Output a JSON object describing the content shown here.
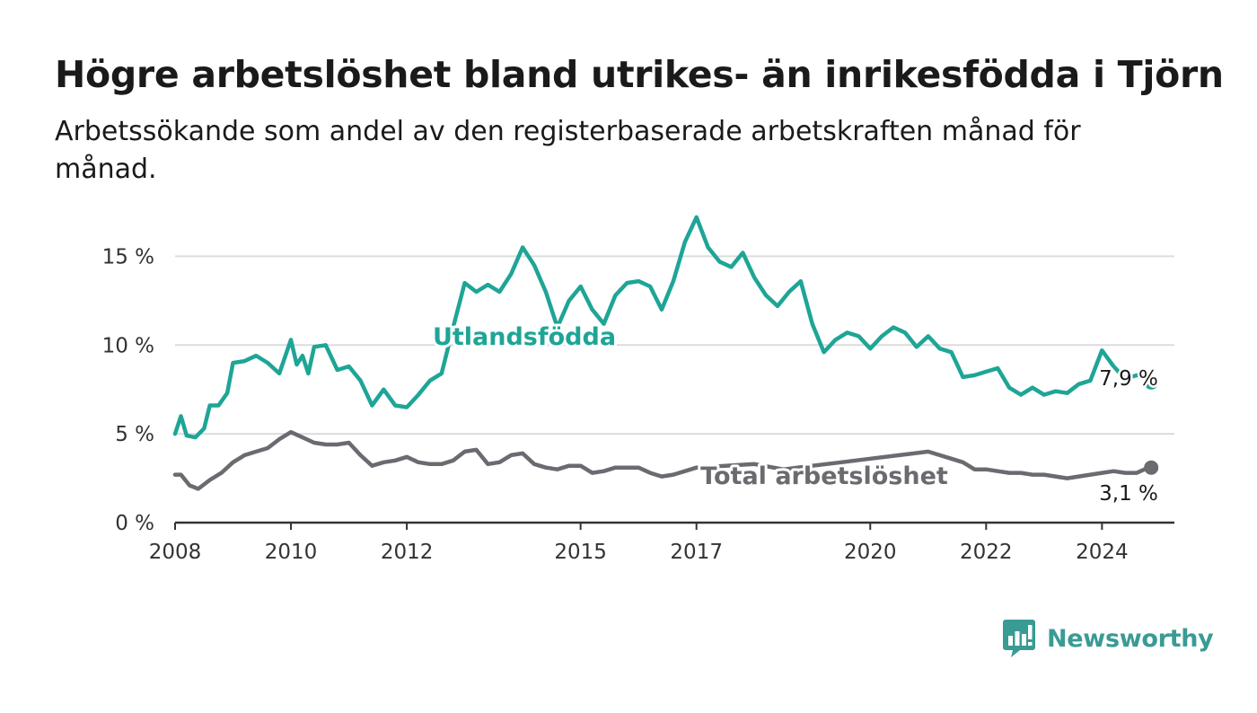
{
  "title": "Högre arbetslöshet bland utrikes- än inrikesfödda i Tjörn",
  "subtitle": "Arbetssökande som andel av den registerbaserade arbetskraften månad för månad.",
  "brand": {
    "name": "Newsworthy",
    "icon": "chart-bubble-icon",
    "color": "#3a9b94"
  },
  "colors": {
    "foreign_born": "#1ea596",
    "total": "#6b6a70",
    "grid": "#dcdcdc",
    "axis": "#333333"
  },
  "chart_data": {
    "type": "line",
    "ylim": [
      0,
      17.5
    ],
    "xlim": [
      2008,
      2025.25
    ],
    "y_ticks": [
      0,
      5,
      10,
      15
    ],
    "y_tick_labels": [
      "0 %",
      "5 %",
      "10 %",
      "15 %"
    ],
    "x_ticks": [
      2008,
      2010,
      2012,
      2015,
      2017,
      2020,
      2022,
      2024
    ],
    "x_tick_labels": [
      "2008",
      "2010",
      "2012",
      "2015",
      "2017",
      "2020",
      "2022",
      "2024"
    ],
    "grid": true,
    "series": [
      {
        "name": "Utlandsfödda",
        "end_label": "7,9 %",
        "x": [
          2008.0,
          2008.1,
          2008.2,
          2008.35,
          2008.5,
          2008.6,
          2008.75,
          2008.9,
          2009.0,
          2009.2,
          2009.4,
          2009.6,
          2009.8,
          2010.0,
          2010.1,
          2010.2,
          2010.3,
          2010.4,
          2010.6,
          2010.8,
          2011.0,
          2011.2,
          2011.4,
          2011.6,
          2011.8,
          2012.0,
          2012.2,
          2012.4,
          2012.6,
          2012.8,
          2013.0,
          2013.2,
          2013.4,
          2013.6,
          2013.8,
          2014.0,
          2014.2,
          2014.4,
          2014.6,
          2014.8,
          2015.0,
          2015.2,
          2015.4,
          2015.6,
          2015.8,
          2016.0,
          2016.2,
          2016.4,
          2016.6,
          2016.8,
          2017.0,
          2017.2,
          2017.4,
          2017.6,
          2017.8,
          2018.0,
          2018.2,
          2018.4,
          2018.6,
          2018.8,
          2019.0,
          2019.2,
          2019.4,
          2019.6,
          2019.8,
          2020.0,
          2020.2,
          2020.4,
          2020.6,
          2020.8,
          2021.0,
          2021.2,
          2021.4,
          2021.6,
          2021.8,
          2022.0,
          2022.2,
          2022.4,
          2022.6,
          2022.8,
          2023.0,
          2023.2,
          2023.4,
          2023.6,
          2023.8,
          2024.0,
          2024.2,
          2024.4,
          2024.6,
          2024.8,
          2024.85
        ],
        "values": [
          5.0,
          6.0,
          4.9,
          4.8,
          5.3,
          6.6,
          6.6,
          7.3,
          9.0,
          9.1,
          9.4,
          9.0,
          8.4,
          10.3,
          8.9,
          9.4,
          8.4,
          9.9,
          10.0,
          8.6,
          8.8,
          8.0,
          6.6,
          7.5,
          6.6,
          6.5,
          7.2,
          8.0,
          8.4,
          11.0,
          13.5,
          13.0,
          13.4,
          13.0,
          14.0,
          15.5,
          14.5,
          13.0,
          11.0,
          12.5,
          13.3,
          12.0,
          11.2,
          12.8,
          13.5,
          13.6,
          13.3,
          12.0,
          13.6,
          15.8,
          17.2,
          15.5,
          14.7,
          14.4,
          15.2,
          13.8,
          12.8,
          12.2,
          13.0,
          13.6,
          11.2,
          9.6,
          10.3,
          10.7,
          10.5,
          9.8,
          10.5,
          11.0,
          10.7,
          9.9,
          10.5,
          9.8,
          9.6,
          8.2,
          8.3,
          8.5,
          8.7,
          7.6,
          7.2,
          7.6,
          7.2,
          7.4,
          7.3,
          7.8,
          8.0,
          9.7,
          8.8,
          8.1,
          8.3,
          8.2,
          7.9
        ]
      },
      {
        "name": "Total arbetslöshet",
        "end_label": "3,1 %",
        "x": [
          2008.0,
          2008.1,
          2008.25,
          2008.4,
          2008.6,
          2008.8,
          2009.0,
          2009.2,
          2009.4,
          2009.6,
          2009.8,
          2010.0,
          2010.2,
          2010.4,
          2010.6,
          2010.8,
          2011.0,
          2011.2,
          2011.4,
          2011.6,
          2011.8,
          2012.0,
          2012.2,
          2012.4,
          2012.6,
          2012.8,
          2013.0,
          2013.2,
          2013.4,
          2013.6,
          2013.8,
          2014.0,
          2014.2,
          2014.4,
          2014.6,
          2014.8,
          2015.0,
          2015.2,
          2015.4,
          2015.6,
          2015.8,
          2016.0,
          2016.2,
          2016.4,
          2016.6,
          2016.8,
          2017.0,
          2017.5,
          2018.0,
          2018.5,
          2019.0,
          2019.5,
          2020.0,
          2020.5,
          2021.0,
          2021.2,
          2021.4,
          2021.6,
          2021.8,
          2022.0,
          2022.2,
          2022.4,
          2022.6,
          2022.8,
          2023.0,
          2023.2,
          2023.4,
          2023.6,
          2023.8,
          2024.0,
          2024.2,
          2024.4,
          2024.6,
          2024.8,
          2024.85
        ],
        "values": [
          2.7,
          2.7,
          2.1,
          1.9,
          2.4,
          2.8,
          3.4,
          3.8,
          4.0,
          4.2,
          4.7,
          5.1,
          4.8,
          4.5,
          4.4,
          4.4,
          4.5,
          3.8,
          3.2,
          3.4,
          3.5,
          3.7,
          3.4,
          3.3,
          3.3,
          3.5,
          4.0,
          4.1,
          3.3,
          3.4,
          3.8,
          3.9,
          3.3,
          3.1,
          3.0,
          3.2,
          3.2,
          2.8,
          2.9,
          3.1,
          3.1,
          3.1,
          2.8,
          2.6,
          2.7,
          2.9,
          3.1,
          3.2,
          3.3,
          3.0,
          3.2,
          3.4,
          3.6,
          3.8,
          4.0,
          3.8,
          3.6,
          3.4,
          3.0,
          3.0,
          2.9,
          2.8,
          2.8,
          2.7,
          2.7,
          2.6,
          2.5,
          2.6,
          2.7,
          2.8,
          2.9,
          2.8,
          2.8,
          3.1,
          3.1
        ]
      }
    ]
  }
}
